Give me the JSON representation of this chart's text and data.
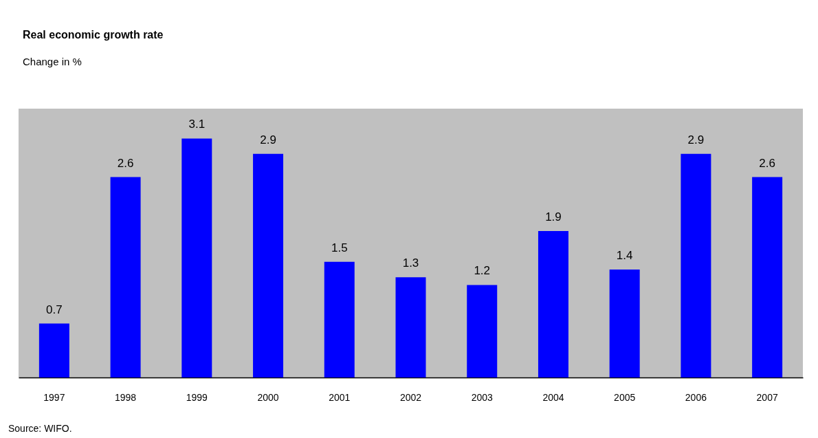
{
  "chart_data": {
    "type": "bar",
    "title": "Real economic growth rate",
    "subtitle": "Change in %",
    "categories": [
      "1997",
      "1998",
      "1999",
      "2000",
      "2001",
      "2002",
      "2003",
      "2004",
      "2005",
      "2006",
      "2007"
    ],
    "values": [
      0.7,
      2.6,
      3.1,
      2.9,
      1.5,
      1.3,
      1.2,
      1.9,
      1.4,
      2.9,
      2.6
    ],
    "color": "#0000ff",
    "data_labels": true,
    "grid": false,
    "annotations": [
      "Source: WIFO."
    ]
  }
}
